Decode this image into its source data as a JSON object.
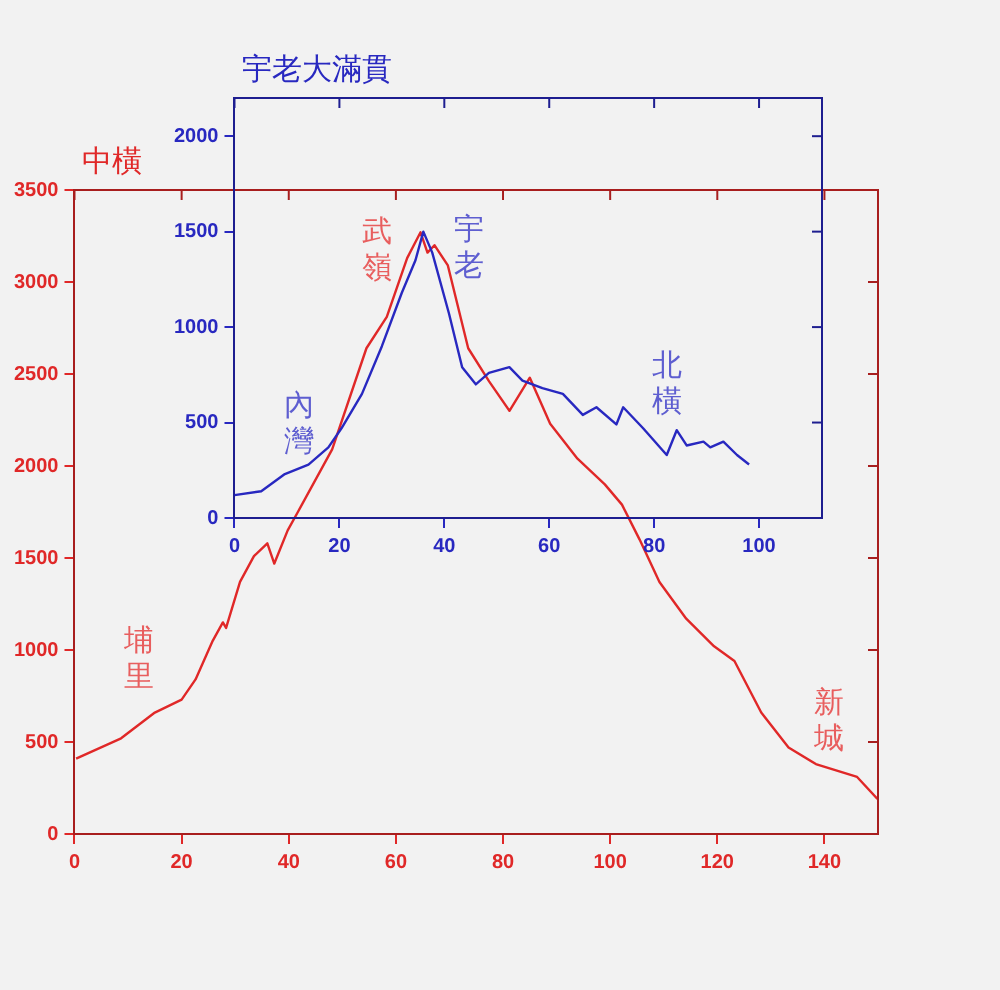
{
  "chart_data": [
    {
      "type": "line",
      "title": "中橫",
      "xlim": [
        0,
        150
      ],
      "xticks": [
        0,
        20,
        40,
        60,
        80,
        100,
        120,
        140
      ],
      "ylim": [
        0,
        3500
      ],
      "yticks": [
        0,
        500,
        1000,
        1500,
        2000,
        2500,
        3000,
        3500
      ],
      "grid": false,
      "legend": false,
      "marker": "none",
      "line_style": "solid",
      "annotations": [
        "埔里",
        "武嶺",
        "新城"
      ],
      "series": [
        {
          "color": "#e02828",
          "x": [
            0.3,
            8.7,
            15,
            20,
            22.6,
            25.8,
            27.7,
            28.3,
            30.9,
            33.5,
            36,
            37.3,
            39.8,
            41.7,
            48.1,
            54.5,
            58.3,
            62.1,
            64.6,
            65.9,
            67.2,
            69.7,
            73.5,
            77.4,
            81.2,
            85,
            88.8,
            93.9,
            99,
            102.2,
            105.5,
            109.2,
            114.2,
            119.4,
            123.2,
            128.2,
            133.3,
            138.4,
            146.1,
            149.9
          ],
          "values": [
            410,
            520,
            660,
            730,
            840,
            1050,
            1150,
            1120,
            1370,
            1510,
            1580,
            1470,
            1650,
            1750,
            2090,
            2640,
            2810,
            3130,
            3270,
            3160,
            3200,
            3090,
            2640,
            2460,
            2300,
            2480,
            2230,
            2040,
            1900,
            1790,
            1600,
            1370,
            1170,
            1020,
            940,
            660,
            470,
            380,
            310,
            190
          ]
        }
      ]
    },
    {
      "type": "line",
      "title": "宇老大滿貫",
      "xlim": [
        0,
        112
      ],
      "xticks": [
        0,
        20,
        40,
        60,
        80,
        100
      ],
      "ylim": [
        0,
        2200
      ],
      "yticks": [
        0,
        500,
        1000,
        1500,
        2000
      ],
      "grid": false,
      "legend": false,
      "marker": "none",
      "line_style": "solid",
      "annotations": [
        "內灣",
        "宇老",
        "北橫"
      ],
      "series": [
        {
          "color": "#2828c0",
          "x": [
            0,
            5.1,
            9.6,
            14.1,
            17.9,
            20.4,
            24.3,
            28.1,
            31.9,
            34.5,
            36,
            37.7,
            40.9,
            43.4,
            46,
            48.5,
            52.4,
            54.9,
            58.7,
            62.6,
            66.4,
            69,
            72.8,
            74.1,
            77.9,
            82.4,
            84.3,
            86.2,
            89.4,
            90.7,
            93.2,
            95.8,
            98.1
          ],
          "values": [
            120,
            140,
            230,
            280,
            370,
            470,
            650,
            900,
            1180,
            1350,
            1500,
            1390,
            1070,
            790,
            700,
            760,
            790,
            720,
            680,
            650,
            540,
            580,
            490,
            580,
            470,
            330,
            460,
            380,
            400,
            370,
            400,
            330,
            280
          ]
        }
      ]
    }
  ]
}
